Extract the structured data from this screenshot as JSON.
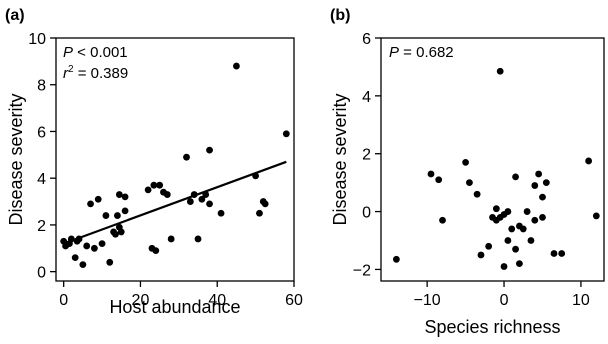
{
  "chart_data": [
    {
      "panel_label": "(a)",
      "type": "scatter",
      "xlabel": "Host abundance",
      "ylabel": "Disease severity",
      "xlim": [
        -2,
        60
      ],
      "ylim": [
        -0.4,
        10
      ],
      "xticks": [
        0,
        20,
        40,
        60
      ],
      "yticks": [
        0,
        2,
        4,
        6,
        8,
        10
      ],
      "annotation_lines": [
        {
          "var": "P",
          "rest": " < 0.001"
        },
        {
          "var": "r",
          "sup": "2",
          "rest": " = 0.389"
        }
      ],
      "regression_line": {
        "x": [
          0,
          58
        ],
        "y": [
          1.2,
          4.7
        ]
      },
      "points": [
        {
          "x": 0,
          "y": 1.3
        },
        {
          "x": 0.5,
          "y": 1.1
        },
        {
          "x": 1.5,
          "y": 1.2
        },
        {
          "x": 2,
          "y": 1.4
        },
        {
          "x": 3,
          "y": 0.6
        },
        {
          "x": 3.5,
          "y": 1.3
        },
        {
          "x": 4,
          "y": 1.4
        },
        {
          "x": 5,
          "y": 0.3
        },
        {
          "x": 6,
          "y": 1.1
        },
        {
          "x": 7,
          "y": 2.9
        },
        {
          "x": 8,
          "y": 1.0
        },
        {
          "x": 9,
          "y": 3.1
        },
        {
          "x": 10,
          "y": 1.2
        },
        {
          "x": 11,
          "y": 2.4
        },
        {
          "x": 12,
          "y": 0.4
        },
        {
          "x": 13,
          "y": 1.7
        },
        {
          "x": 13.5,
          "y": 1.6
        },
        {
          "x": 14,
          "y": 2.4
        },
        {
          "x": 14.5,
          "y": 1.9
        },
        {
          "x": 14.5,
          "y": 3.3
        },
        {
          "x": 15,
          "y": 1.7
        },
        {
          "x": 16,
          "y": 3.2
        },
        {
          "x": 16,
          "y": 2.6
        },
        {
          "x": 22,
          "y": 3.5
        },
        {
          "x": 23,
          "y": 1.0
        },
        {
          "x": 23.5,
          "y": 3.7
        },
        {
          "x": 24,
          "y": 0.9
        },
        {
          "x": 25,
          "y": 3.7
        },
        {
          "x": 26,
          "y": 3.4
        },
        {
          "x": 27,
          "y": 3.3
        },
        {
          "x": 28,
          "y": 1.4
        },
        {
          "x": 32,
          "y": 4.9
        },
        {
          "x": 33,
          "y": 3.0
        },
        {
          "x": 34,
          "y": 3.3
        },
        {
          "x": 35,
          "y": 1.4
        },
        {
          "x": 36,
          "y": 3.1
        },
        {
          "x": 37,
          "y": 3.3
        },
        {
          "x": 38,
          "y": 5.2
        },
        {
          "x": 38,
          "y": 2.9
        },
        {
          "x": 41,
          "y": 2.5
        },
        {
          "x": 45,
          "y": 8.8
        },
        {
          "x": 50,
          "y": 4.1
        },
        {
          "x": 51,
          "y": 2.5
        },
        {
          "x": 52,
          "y": 3.0
        },
        {
          "x": 52.5,
          "y": 2.9
        },
        {
          "x": 58,
          "y": 5.9
        }
      ]
    },
    {
      "panel_label": "(b)",
      "type": "scatter",
      "xlabel": "Species richness",
      "ylabel": "Disease severity",
      "xlim": [
        -16,
        13
      ],
      "ylim": [
        -2.4,
        6
      ],
      "xticks": [
        -10,
        0,
        10
      ],
      "yticks": [
        -2,
        0,
        2,
        4,
        6
      ],
      "annotation_lines": [
        {
          "var": "P",
          "rest": " = 0.682"
        }
      ],
      "points": [
        {
          "x": -14,
          "y": -1.65
        },
        {
          "x": -9.5,
          "y": 1.3
        },
        {
          "x": -8.5,
          "y": 1.1
        },
        {
          "x": -8,
          "y": -0.3
        },
        {
          "x": -5,
          "y": 1.7
        },
        {
          "x": -4.5,
          "y": 1.0
        },
        {
          "x": -3.5,
          "y": 0.6
        },
        {
          "x": -3,
          "y": -1.5
        },
        {
          "x": -2,
          "y": -1.2
        },
        {
          "x": -1.5,
          "y": -0.2
        },
        {
          "x": -1,
          "y": 0.1
        },
        {
          "x": -1,
          "y": -0.3
        },
        {
          "x": -0.5,
          "y": 4.85
        },
        {
          "x": -0.5,
          "y": -0.2
        },
        {
          "x": 0,
          "y": -1.9
        },
        {
          "x": 0,
          "y": -0.1
        },
        {
          "x": 0.5,
          "y": 0.0
        },
        {
          "x": 0.5,
          "y": -1.0
        },
        {
          "x": 1,
          "y": -0.6
        },
        {
          "x": 1.5,
          "y": -1.3
        },
        {
          "x": 1.5,
          "y": 1.2
        },
        {
          "x": 2,
          "y": -1.8
        },
        {
          "x": 2,
          "y": -0.5
        },
        {
          "x": 2.5,
          "y": -0.6
        },
        {
          "x": 3,
          "y": 0.0
        },
        {
          "x": 3.5,
          "y": -1.0
        },
        {
          "x": 4,
          "y": -0.3
        },
        {
          "x": 4,
          "y": 0.9
        },
        {
          "x": 4.5,
          "y": 1.3
        },
        {
          "x": 5,
          "y": 0.5
        },
        {
          "x": 5,
          "y": -0.2
        },
        {
          "x": 5.5,
          "y": 1.0
        },
        {
          "x": 6.5,
          "y": -1.45
        },
        {
          "x": 7.5,
          "y": -1.45
        },
        {
          "x": 11,
          "y": 1.75
        },
        {
          "x": 12,
          "y": -0.15
        }
      ]
    }
  ]
}
